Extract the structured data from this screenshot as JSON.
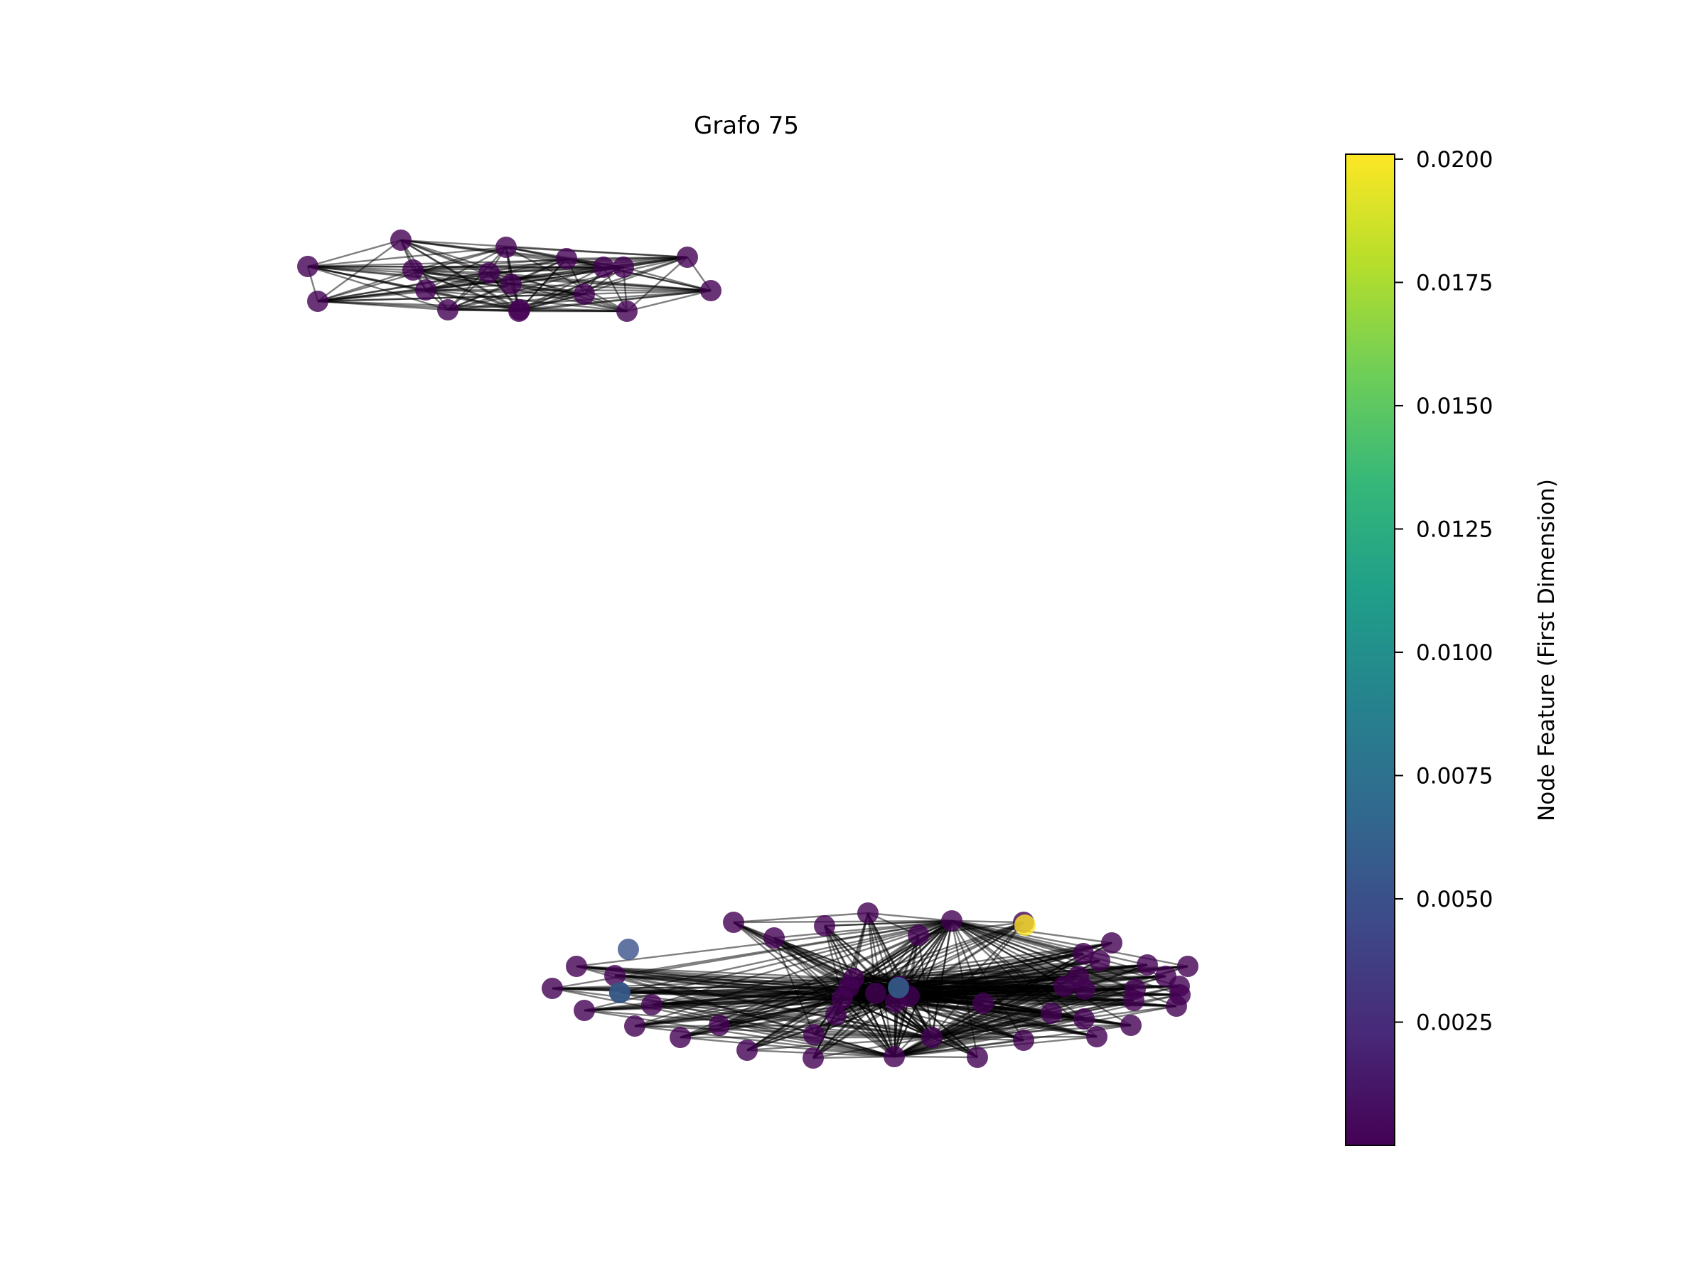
{
  "figure": {
    "title": "Grafo 75"
  },
  "colorbar": {
    "label": "Node Feature (First Dimension)",
    "colormap": "viridis",
    "min": 0.0,
    "max": 0.0201,
    "ticks": [
      {
        "value": 0.02,
        "label": "0.0200"
      },
      {
        "value": 0.0175,
        "label": "0.0175"
      },
      {
        "value": 0.015,
        "label": "0.0150"
      },
      {
        "value": 0.0125,
        "label": "0.0125"
      },
      {
        "value": 0.01,
        "label": "0.0100"
      },
      {
        "value": 0.0075,
        "label": "0.0075"
      },
      {
        "value": 0.005,
        "label": "0.0050"
      },
      {
        "value": 0.0025,
        "label": "0.0025"
      }
    ],
    "stops": [
      "#440154",
      "#482878",
      "#3e4989",
      "#31688e",
      "#26828e",
      "#1f9e89",
      "#35b779",
      "#6ece58",
      "#b5de2b",
      "#fde725"
    ]
  },
  "node_colors": {
    "low": "#440154",
    "mid_blue": "#3b528b",
    "steel_blue": "#31688e",
    "yellow": "#fde725"
  }
}
